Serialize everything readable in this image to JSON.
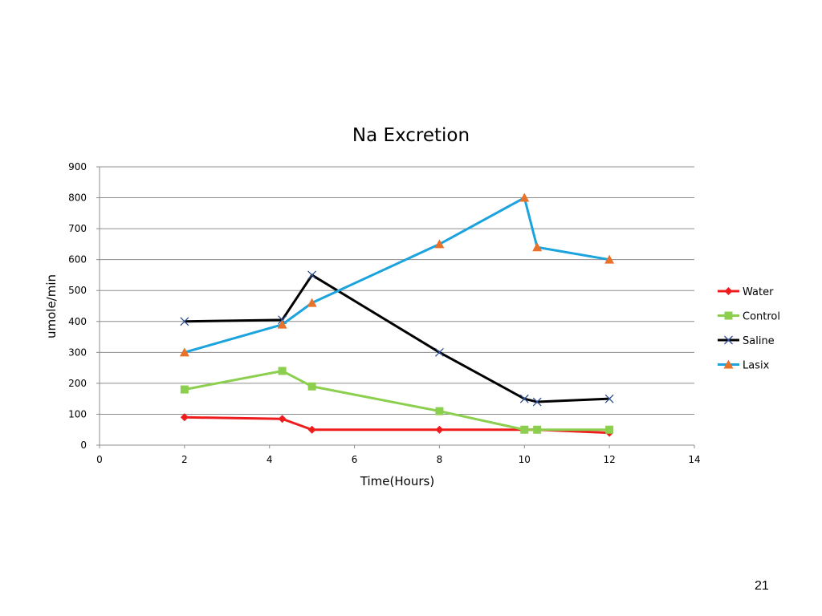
{
  "slide": {
    "page_number": "21"
  },
  "chart_data": {
    "type": "line",
    "title": "Na Excretion",
    "xlabel": "Time(Hours)",
    "ylabel": "umole/min",
    "xlim": [
      0,
      14
    ],
    "ylim": [
      0,
      900
    ],
    "xticks": [
      0,
      2,
      4,
      6,
      8,
      10,
      12,
      14
    ],
    "yticks": [
      0,
      100,
      200,
      300,
      400,
      500,
      600,
      700,
      800,
      900
    ],
    "grid": "horizontal",
    "legend_position": "right",
    "series": [
      {
        "name": "Water",
        "color": "#ee1c1c",
        "marker": "diamond",
        "marker_color": "#ee1c1c",
        "points": [
          [
            2,
            90
          ],
          [
            4.3,
            85
          ],
          [
            5,
            50
          ],
          [
            8,
            50
          ],
          [
            10,
            50
          ],
          [
            10.3,
            50
          ],
          [
            12,
            40
          ]
        ]
      },
      {
        "name": "Control",
        "color": "#8ccf4e",
        "marker": "square",
        "marker_color": "#8ccf4e",
        "points": [
          [
            2,
            180
          ],
          [
            4.3,
            240
          ],
          [
            5,
            190
          ],
          [
            8,
            110
          ],
          [
            10,
            50
          ],
          [
            10.3,
            50
          ],
          [
            12,
            50
          ]
        ]
      },
      {
        "name": "Saline",
        "color": "#000000",
        "marker": "x",
        "marker_color": "#2e4f8f",
        "points": [
          [
            2,
            400
          ],
          [
            4.3,
            405
          ],
          [
            5,
            550
          ],
          [
            8,
            300
          ],
          [
            10,
            150
          ],
          [
            10.3,
            140
          ],
          [
            12,
            150
          ]
        ]
      },
      {
        "name": "Lasix",
        "color": "#1aa3dd",
        "marker": "triangle",
        "marker_color": "#e8722a",
        "points": [
          [
            2,
            300
          ],
          [
            4.3,
            390
          ],
          [
            5,
            460
          ],
          [
            8,
            650
          ],
          [
            10,
            800
          ],
          [
            10.3,
            640
          ],
          [
            12,
            600
          ]
        ]
      }
    ]
  }
}
